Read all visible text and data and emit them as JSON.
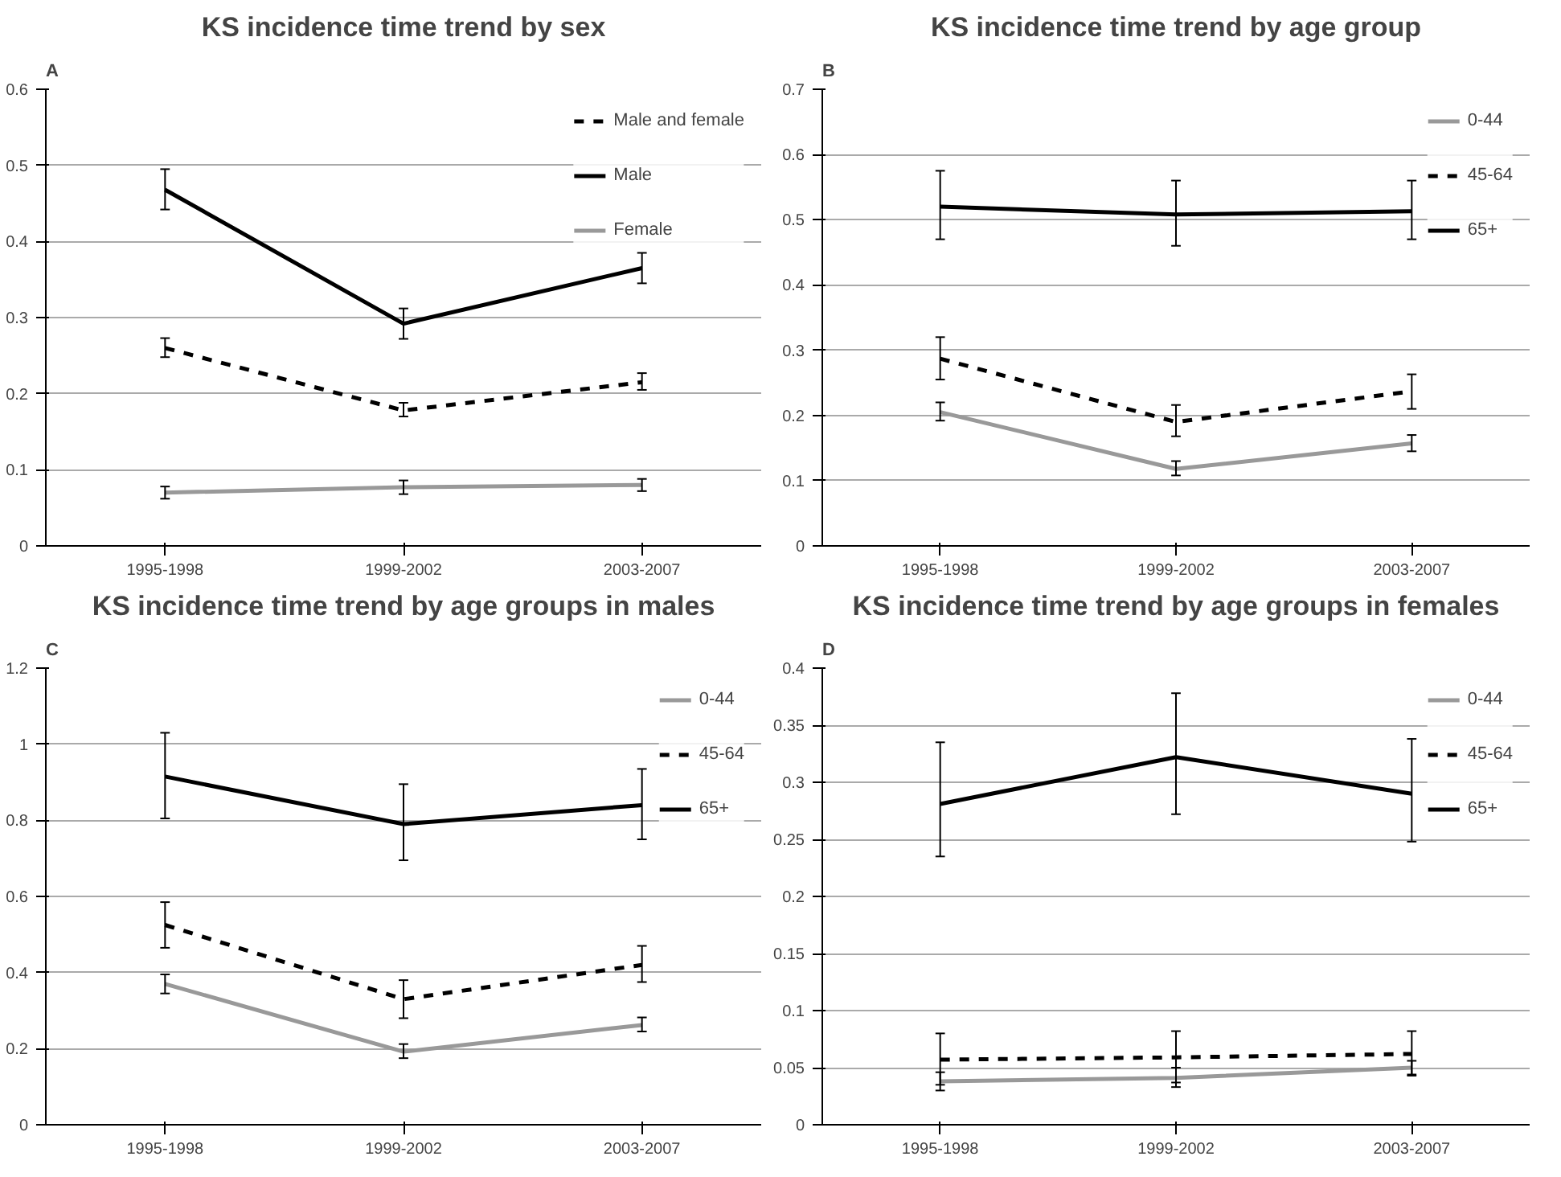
{
  "chart_data": [
    {
      "type": "line",
      "title": "KS incidence time trend by sex",
      "annotations": [
        "A"
      ],
      "categories": [
        "1995-1998",
        "1999-2002",
        "2003-2007"
      ],
      "ylim": [
        0,
        0.6
      ],
      "yticks": [
        0,
        0.1,
        0.2,
        0.3,
        0.4,
        0.5,
        0.6
      ],
      "grid": "y",
      "legend": "top right",
      "line_style": "solid",
      "series": [
        {
          "name": "Male and female",
          "color": "#000000",
          "line_style": "dashed",
          "values": [
            0.26,
            0.178,
            0.215
          ],
          "errors": [
            [
              0.248,
              0.273
            ],
            [
              0.17,
              0.188
            ],
            [
              0.205,
              0.227
            ]
          ]
        },
        {
          "name": "Male",
          "color": "#000000",
          "values": [
            0.468,
            0.292,
            0.365
          ],
          "errors": [
            [
              0.442,
              0.495
            ],
            [
              0.272,
              0.312
            ],
            [
              0.345,
              0.385
            ]
          ]
        },
        {
          "name": "Female",
          "color": "#999999",
          "values": [
            0.07,
            0.077,
            0.08
          ],
          "errors": [
            [
              0.062,
              0.078
            ],
            [
              0.068,
              0.086
            ],
            [
              0.072,
              0.088
            ]
          ]
        }
      ]
    },
    {
      "type": "line",
      "title": "KS incidence time trend by age group",
      "annotations": [
        "B"
      ],
      "categories": [
        "1995-1998",
        "1999-2002",
        "2003-2007"
      ],
      "ylim": [
        0,
        0.7
      ],
      "yticks": [
        0,
        0.1,
        0.2,
        0.3,
        0.4,
        0.5,
        0.6,
        0.7
      ],
      "grid": "y",
      "legend": "top right",
      "line_style": "solid",
      "series": [
        {
          "name": "0-44",
          "color": "#999999",
          "values": [
            0.205,
            0.118,
            0.157
          ],
          "errors": [
            [
              0.192,
              0.22
            ],
            [
              0.108,
              0.13
            ],
            [
              0.145,
              0.17
            ]
          ]
        },
        {
          "name": "45-64",
          "color": "#000000",
          "line_style": "dashed",
          "values": [
            0.287,
            0.19,
            0.237
          ],
          "errors": [
            [
              0.255,
              0.32
            ],
            [
              0.168,
              0.216
            ],
            [
              0.21,
              0.263
            ]
          ]
        },
        {
          "name": "65+",
          "color": "#000000",
          "values": [
            0.52,
            0.508,
            0.513
          ],
          "errors": [
            [
              0.47,
              0.575
            ],
            [
              0.46,
              0.56
            ],
            [
              0.47,
              0.56
            ]
          ]
        }
      ]
    },
    {
      "type": "line",
      "title": "KS incidence time trend by age groups in males",
      "annotations": [
        "C"
      ],
      "categories": [
        "1995-1998",
        "1999-2002",
        "2003-2007"
      ],
      "ylim": [
        0,
        1.2
      ],
      "yticks": [
        0,
        0.2,
        0.4,
        0.6,
        0.8,
        1,
        1.2
      ],
      "grid": "y",
      "legend": "top right",
      "line_style": "solid",
      "series": [
        {
          "name": "0-44",
          "color": "#999999",
          "values": [
            0.37,
            0.192,
            0.262
          ],
          "errors": [
            [
              0.345,
              0.395
            ],
            [
              0.175,
              0.212
            ],
            [
              0.245,
              0.282
            ]
          ]
        },
        {
          "name": "45-64",
          "color": "#000000",
          "line_style": "dashed",
          "values": [
            0.525,
            0.33,
            0.42
          ],
          "errors": [
            [
              0.465,
              0.585
            ],
            [
              0.28,
              0.38
            ],
            [
              0.375,
              0.47
            ]
          ]
        },
        {
          "name": "65+",
          "color": "#000000",
          "values": [
            0.915,
            0.79,
            0.84
          ],
          "errors": [
            [
              0.805,
              1.03
            ],
            [
              0.695,
              0.895
            ],
            [
              0.75,
              0.935
            ]
          ]
        }
      ]
    },
    {
      "type": "line",
      "title": "KS incidence time trend by age groups in females",
      "annotations": [
        "D"
      ],
      "categories": [
        "1995-1998",
        "1999-2002",
        "2003-2007"
      ],
      "ylim": [
        0,
        0.4
      ],
      "yticks": [
        0,
        0.05,
        0.1,
        0.15,
        0.2,
        0.25,
        0.3,
        0.35,
        0.4
      ],
      "grid": "y",
      "legend": "top right",
      "line_style": "solid",
      "series": [
        {
          "name": "0-44",
          "color": "#999999",
          "values": [
            0.038,
            0.041,
            0.05
          ],
          "errors": [
            [
              0.03,
              0.046
            ],
            [
              0.033,
              0.05
            ],
            [
              0.044,
              0.056
            ]
          ]
        },
        {
          "name": "45-64",
          "color": "#000000",
          "line_style": "dashed",
          "values": [
            0.057,
            0.059,
            0.062
          ],
          "errors": [
            [
              0.035,
              0.08
            ],
            [
              0.037,
              0.082
            ],
            [
              0.043,
              0.082
            ]
          ]
        },
        {
          "name": "65+",
          "color": "#000000",
          "values": [
            0.281,
            0.322,
            0.29
          ],
          "errors": [
            [
              0.235,
              0.335
            ],
            [
              0.272,
              0.378
            ],
            [
              0.248,
              0.338
            ]
          ]
        }
      ]
    }
  ]
}
